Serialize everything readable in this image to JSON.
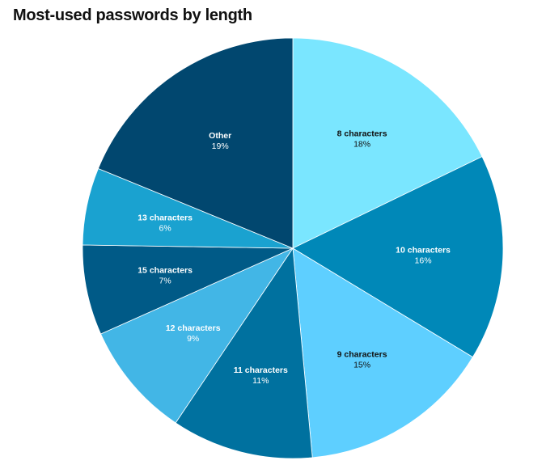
{
  "chart_data": {
    "type": "pie",
    "title": "Most-used passwords by length",
    "slices": [
      {
        "label": "8 characters",
        "value": 18,
        "value_label": "18%",
        "color": "#7ae6ff",
        "text_color": "#111111"
      },
      {
        "label": "10 characters",
        "value": 16,
        "value_label": "16%",
        "color": "#0088b8",
        "text_color": "#ffffff"
      },
      {
        "label": "9 characters",
        "value": 15,
        "value_label": "15%",
        "color": "#5ecfff",
        "text_color": "#111111"
      },
      {
        "label": "11 characters",
        "value": 11,
        "value_label": "11%",
        "color": "#00719f",
        "text_color": "#ffffff"
      },
      {
        "label": "12 characters",
        "value": 9,
        "value_label": "9%",
        "color": "#42b6e6",
        "text_color": "#ffffff"
      },
      {
        "label": "15 characters",
        "value": 7,
        "value_label": "7%",
        "color": "#005a87",
        "text_color": "#ffffff"
      },
      {
        "label": "13 characters",
        "value": 6,
        "value_label": "6%",
        "color": "#1aa2d0",
        "text_color": "#ffffff"
      },
      {
        "label": "Other",
        "value": 19,
        "value_label": "19%",
        "color": "#01476f",
        "text_color": "#ffffff"
      }
    ],
    "start_angle": "top",
    "direction": "clockwise",
    "legend": "none"
  }
}
